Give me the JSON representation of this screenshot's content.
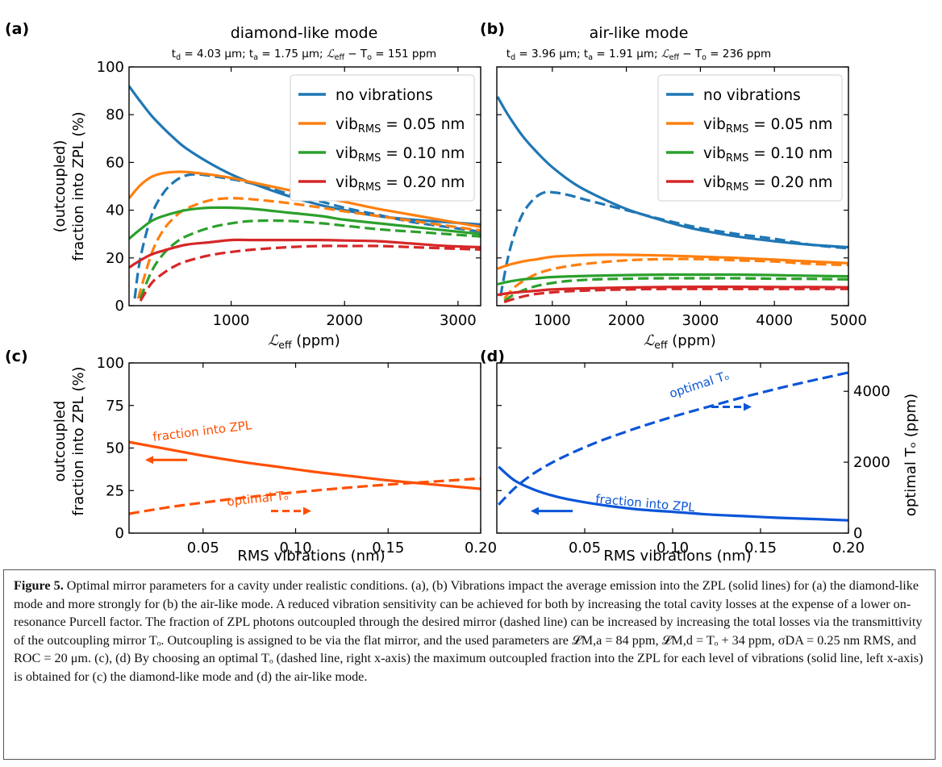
{
  "figure": {
    "caption_label": "Figure 5.",
    "caption_text": "Optimal mirror parameters for a cavity under realistic conditions. (a), (b) Vibrations impact the average emission into the ZPL (solid lines) for (a) the diamond-like mode and more strongly for (b) the air-like mode. A reduced vibration sensitivity can be achieved for both by increasing the total cavity losses at the expense of a lower on-resonance Purcell factor. The fraction of ZPL photons outcoupled through the desired mirror (dashed line) can be increased by increasing the total losses via the transmittivity of the outcoupling mirror Tₒ. Outcoupling is assigned to be via the flat mirror, and the used parameters are 𝓛M,a = 84 ppm, 𝓛M,d = Tₒ + 34 ppm, σDA = 0.25 nm RMS, and ROC = 20 μm. (c), (d) By choosing an optimal Tₒ (dashed line, right x-axis) the maximum outcoupled fraction into the ZPL for each level of vibrations (solid line, left x-axis) is obtained for (c) the diamond-like mode and (d) the air-like mode."
  },
  "chart_data": [
    {
      "panel": "(a)",
      "type": "line",
      "title": "diamond-like mode",
      "subtitle": "t_d = 4.03 μm; t_a = 1.75 μm; ℒ_eff − T_o = 151 ppm",
      "xlabel": "ℒeff (ppm)",
      "ylabel": "(outcoupled)\nfraction into ZPL (%)",
      "xlim": [
        100,
        3200
      ],
      "ylim": [
        0,
        100
      ],
      "xticks": [
        1000,
        2000,
        3000
      ],
      "yticks": [
        0,
        20,
        40,
        60,
        80,
        100
      ],
      "legend": [
        "no vibrations",
        "vib_RMS = 0.05 nm",
        "vib_RMS = 0.10 nm",
        "vib_RMS = 0.20 nm"
      ],
      "legend_position": "top-right",
      "colors": [
        "#1f77b4",
        "#ff7f0e",
        "#2ca02c",
        "#d62728"
      ],
      "series": [
        {
          "name": "no vibrations",
          "style": "solid",
          "x": [
            100,
            200,
            300,
            400,
            500,
            600,
            800,
            1000,
            1200,
            1500,
            1800,
            2000,
            2300,
            2600,
            2900,
            3200
          ],
          "y": [
            92,
            85.5,
            79.5,
            74.5,
            70,
            66,
            60,
            55,
            51,
            46,
            42,
            40,
            37.5,
            36,
            35,
            34
          ]
        },
        {
          "name": "no vibrations",
          "style": "dashed",
          "x": [
            150,
            200,
            300,
            400,
            500,
            600,
            700,
            800,
            1000,
            1200,
            1500,
            1800,
            2000,
            2300,
            2600,
            2900,
            3200
          ],
          "y": [
            3,
            20,
            38,
            47,
            52,
            54.5,
            55,
            54.5,
            53,
            51,
            47,
            43.5,
            41,
            38,
            35,
            33,
            31
          ]
        },
        {
          "name": "vib_RMS = 0.05 nm",
          "style": "solid",
          "x": [
            100,
            200,
            300,
            400,
            500,
            600,
            800,
            1000,
            1200,
            1500,
            1800,
            2000,
            2300,
            2600,
            2900,
            3200
          ],
          "y": [
            45,
            50.5,
            54,
            55.5,
            56,
            56,
            55,
            53.5,
            51.5,
            48.5,
            45.5,
            43.5,
            40.5,
            38,
            35.5,
            33
          ]
        },
        {
          "name": "vib_RMS = 0.05 nm",
          "style": "dashed",
          "x": [
            180,
            300,
            400,
            500,
            600,
            800,
            1000,
            1200,
            1500,
            1800,
            2000,
            2300,
            2600,
            2900,
            3200
          ],
          "y": [
            3,
            22,
            31.5,
            37,
            40.5,
            44,
            45,
            44.5,
            43,
            41,
            39.5,
            37.5,
            35.5,
            33.5,
            31.5
          ]
        },
        {
          "name": "vib_RMS = 0.10 nm",
          "style": "solid",
          "x": [
            100,
            200,
            300,
            400,
            600,
            800,
            1000,
            1200,
            1500,
            1800,
            2000,
            2300,
            2600,
            2900,
            3200
          ],
          "y": [
            28,
            32,
            35.5,
            37.5,
            40,
            41,
            41,
            40.5,
            39,
            37.5,
            36,
            34.5,
            33,
            31.5,
            30
          ]
        },
        {
          "name": "vib_RMS = 0.10 nm",
          "style": "dashed",
          "x": [
            200,
            300,
            400,
            500,
            600,
            800,
            1000,
            1200,
            1500,
            1800,
            2000,
            2300,
            2600,
            2900,
            3200
          ],
          "y": [
            3,
            14.5,
            21.5,
            26,
            29,
            32.5,
            34.5,
            35.5,
            35.5,
            34.5,
            33.5,
            32,
            31,
            30,
            29
          ]
        },
        {
          "name": "vib_RMS = 0.20 nm",
          "style": "solid",
          "x": [
            100,
            200,
            300,
            400,
            600,
            800,
            1000,
            1200,
            1500,
            1800,
            2000,
            2300,
            2600,
            2900,
            3200
          ],
          "y": [
            16,
            19,
            21.5,
            23,
            25.5,
            26.5,
            27.5,
            27.5,
            27.5,
            27.5,
            27.3,
            27,
            26,
            25,
            24.5
          ]
        },
        {
          "name": "vib_RMS = 0.20 nm",
          "style": "dashed",
          "x": [
            200,
            300,
            400,
            500,
            600,
            800,
            1000,
            1200,
            1500,
            1800,
            2000,
            2300,
            2600,
            2900,
            3200
          ],
          "y": [
            2,
            9.5,
            13.5,
            16.5,
            18.5,
            21,
            22.5,
            23.5,
            24.5,
            25,
            25,
            25,
            24.5,
            24,
            23.5
          ]
        }
      ]
    },
    {
      "panel": "(b)",
      "type": "line",
      "title": "air-like mode",
      "subtitle": "t_d = 3.96 μm; t_a = 1.91 μm; ℒ_eff − T_o = 236 ppm",
      "xlabel": "ℒeff (ppm)",
      "xlim": [
        250,
        5000
      ],
      "ylim": [
        0,
        100
      ],
      "xticks": [
        1000,
        2000,
        3000,
        4000,
        5000
      ],
      "legend": [
        "no vibrations",
        "vib_RMS = 0.05 nm",
        "vib_RMS = 0.10 nm",
        "vib_RMS = 0.20 nm"
      ],
      "legend_position": "top-right",
      "colors": [
        "#1f77b4",
        "#ff7f0e",
        "#2ca02c",
        "#d62728"
      ],
      "series": [
        {
          "name": "no vibrations",
          "style": "solid",
          "x": [
            260,
            400,
            600,
            800,
            1000,
            1300,
            1600,
            2000,
            2400,
            2800,
            3200,
            3600,
            4000,
            4500,
            5000
          ],
          "y": [
            87.5,
            80,
            71,
            64,
            58,
            51,
            46,
            40.5,
            36.5,
            33,
            30.5,
            28.5,
            27,
            25.5,
            24.5
          ]
        },
        {
          "name": "no vibrations",
          "style": "dashed",
          "x": [
            300,
            400,
            500,
            600,
            700,
            800,
            900,
            1000,
            1200,
            1500,
            2000,
            2500,
            3000,
            3500,
            4000,
            4500,
            5000
          ],
          "y": [
            4,
            20,
            31,
            38.5,
            43,
            46,
            47.5,
            47.5,
            46.5,
            44,
            40,
            36,
            32.5,
            30,
            28,
            25.5,
            24
          ]
        },
        {
          "name": "vib_RMS = 0.05 nm",
          "style": "solid",
          "x": [
            260,
            400,
            600,
            800,
            1000,
            1300,
            1600,
            2000,
            2500,
            3000,
            3500,
            4000,
            4500,
            5000
          ],
          "y": [
            15.5,
            17,
            18.5,
            19.5,
            20.5,
            21,
            21.3,
            21.3,
            21,
            20.5,
            20,
            19.3,
            18.5,
            17.8
          ]
        },
        {
          "name": "vib_RMS = 0.05 nm",
          "style": "dashed",
          "x": [
            350,
            500,
            700,
            900,
            1200,
            1600,
            2000,
            2500,
            3000,
            3500,
            4000,
            4500,
            5000
          ],
          "y": [
            3,
            8,
            12,
            14.5,
            16.5,
            18,
            19,
            19.5,
            19.5,
            19,
            18.5,
            17.5,
            17
          ]
        },
        {
          "name": "vib_RMS = 0.10 nm",
          "style": "solid",
          "x": [
            260,
            400,
            600,
            800,
            1000,
            1500,
            2000,
            2500,
            3000,
            3500,
            4000,
            4500,
            5000
          ],
          "y": [
            9,
            10,
            11,
            11.5,
            12,
            12.5,
            12.8,
            13,
            13,
            13,
            12.8,
            12.5,
            12.3
          ]
        },
        {
          "name": "vib_RMS = 0.10 nm",
          "style": "dashed",
          "x": [
            350,
            500,
            700,
            900,
            1200,
            1600,
            2000,
            2500,
            3000,
            3500,
            4000,
            4500,
            5000
          ],
          "y": [
            2,
            5,
            7.5,
            9,
            10.3,
            11,
            11.3,
            11.5,
            11.5,
            11.5,
            11.3,
            11.2,
            11
          ]
        },
        {
          "name": "vib_RMS = 0.20 nm",
          "style": "solid",
          "x": [
            260,
            400,
            600,
            800,
            1000,
            1500,
            2000,
            2500,
            3000,
            3500,
            4000,
            4500,
            5000
          ],
          "y": [
            4.5,
            5.2,
            5.8,
            6.3,
            6.8,
            7.3,
            7.6,
            7.8,
            7.9,
            7.9,
            7.8,
            7.8,
            7.7
          ]
        },
        {
          "name": "vib_RMS = 0.20 nm",
          "style": "dashed",
          "x": [
            350,
            500,
            700,
            900,
            1200,
            1600,
            2000,
            2500,
            3000,
            3500,
            4000,
            4500,
            5000
          ],
          "y": [
            1.5,
            3,
            4.5,
            5.3,
            6,
            6.5,
            6.8,
            7,
            7,
            7,
            7,
            7,
            7
          ]
        }
      ]
    },
    {
      "panel": "(c)",
      "type": "line",
      "xlabel": "RMS vibrations (nm)",
      "ylabel": "outcoupled\nfraction into ZPL (%)",
      "xlim": [
        0.01,
        0.2
      ],
      "ylim": [
        0,
        100
      ],
      "xticks": [
        0.05,
        0.1,
        0.15,
        0.2
      ],
      "xtick_labels": [
        "0.05",
        "0.10",
        "0.15",
        "0.20"
      ],
      "yticks": [
        0,
        25,
        50,
        75,
        100
      ],
      "color": "#ff4f00",
      "annotations": [
        "fraction into ZPL",
        "optimal Tₒ"
      ],
      "series": [
        {
          "name": "fraction into ZPL",
          "style": "solid",
          "axis": "left",
          "x": [
            0.01,
            0.03,
            0.05,
            0.07,
            0.09,
            0.11,
            0.13,
            0.15,
            0.17,
            0.2
          ],
          "y": [
            53.5,
            49.5,
            45.5,
            42,
            39,
            36,
            33.5,
            31,
            29,
            26
          ]
        },
        {
          "name": "optimal Tₒ",
          "style": "dashed",
          "axis": "right",
          "x": [
            0.01,
            0.03,
            0.05,
            0.07,
            0.09,
            0.11,
            0.13,
            0.15,
            0.17,
            0.2
          ],
          "y": [
            545,
            720,
            860,
            990,
            1100,
            1200,
            1290,
            1370,
            1440,
            1540
          ]
        }
      ]
    },
    {
      "panel": "(d)",
      "type": "line",
      "xlabel": "RMS vibrations (nm)",
      "ylabel_right": "optimal Tₒ (ppm)",
      "xlim": [
        0.0,
        0.2
      ],
      "ylim_right": [
        0,
        4800
      ],
      "xticks": [
        0.05,
        0.1,
        0.15,
        0.2
      ],
      "xtick_labels": [
        "0.05",
        "0.10",
        "0.15",
        "0.20"
      ],
      "yticks_right": [
        0,
        2000,
        4000
      ],
      "color": "#0b55d8",
      "annotations": [
        "fraction into ZPL",
        "optimal Tₒ"
      ],
      "series": [
        {
          "name": "fraction into ZPL",
          "style": "solid",
          "axis": "left",
          "x": [
            0.001,
            0.01,
            0.02,
            0.03,
            0.04,
            0.06,
            0.08,
            0.1,
            0.12,
            0.14,
            0.16,
            0.18,
            0.2
          ],
          "y": [
            39,
            31,
            26,
            22.5,
            20,
            16.5,
            14,
            12.5,
            11,
            10,
            9,
            8.3,
            7.5
          ]
        },
        {
          "name": "optimal Tₒ",
          "style": "dashed",
          "axis": "right",
          "x": [
            0.001,
            0.01,
            0.02,
            0.03,
            0.04,
            0.05,
            0.06,
            0.08,
            0.1,
            0.12,
            0.14,
            0.16,
            0.18,
            0.2
          ],
          "y": [
            800,
            1260,
            1650,
            1950,
            2200,
            2420,
            2620,
            2970,
            3280,
            3560,
            3830,
            4080,
            4310,
            4530
          ]
        }
      ]
    }
  ]
}
